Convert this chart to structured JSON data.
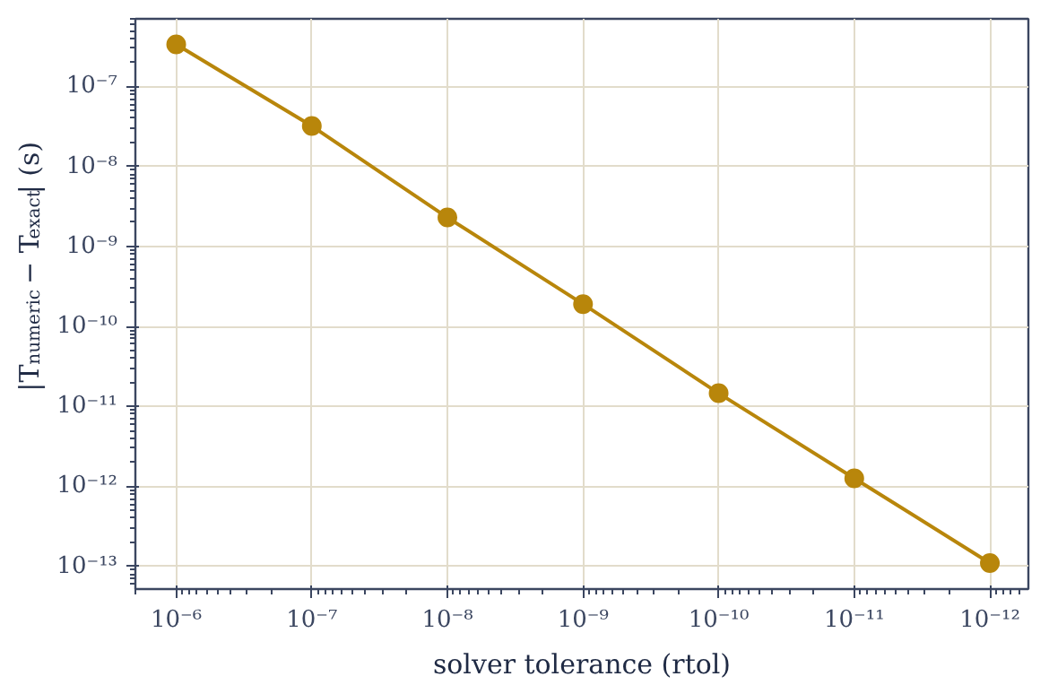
{
  "chart_data": {
    "type": "line",
    "xlabel": "solver tolerance (rtol)",
    "ylabel": "|T$_{numeric}$ − T$_{exact}$|  (s)",
    "x": [
      1e-06,
      1e-07,
      1e-08,
      1e-09,
      1e-10,
      1e-11,
      1e-12
    ],
    "series": [
      {
        "color": "#b8860b",
        "values": [
          3.35e-07,
          3.2e-08,
          2.3e-09,
          1.9e-10,
          1.46e-11,
          1.26e-12,
          1.1e-13
        ]
      }
    ],
    "log": "xy",
    "marker": "circle",
    "line_style": "solid",
    "grid": true,
    "xlim": [
      2e-06,
      5.2e-13
    ],
    "ylim": [
      5.2e-14,
      7e-07
    ],
    "xticks": [
      {
        "value": 1e-06,
        "label": "10⁻⁶"
      },
      {
        "value": 1e-07,
        "label": "10⁻⁷"
      },
      {
        "value": 1e-08,
        "label": "10⁻⁸"
      },
      {
        "value": 1e-09,
        "label": "10⁻⁹"
      },
      {
        "value": 1e-10,
        "label": "10⁻¹⁰"
      },
      {
        "value": 1e-11,
        "label": "10⁻¹¹"
      },
      {
        "value": 1e-12,
        "label": "10⁻¹²"
      }
    ],
    "yticks": [
      {
        "value": 1e-07,
        "label": "10⁻⁷"
      },
      {
        "value": 1e-08,
        "label": "10⁻⁸"
      },
      {
        "value": 1e-09,
        "label": "10⁻⁹"
      },
      {
        "value": 1e-10,
        "label": "10⁻¹⁰"
      },
      {
        "value": 1e-11,
        "label": "10⁻¹¹"
      },
      {
        "value": 1e-12,
        "label": "10⁻¹²"
      },
      {
        "value": 1e-13,
        "label": "10⁻¹³"
      }
    ]
  }
}
